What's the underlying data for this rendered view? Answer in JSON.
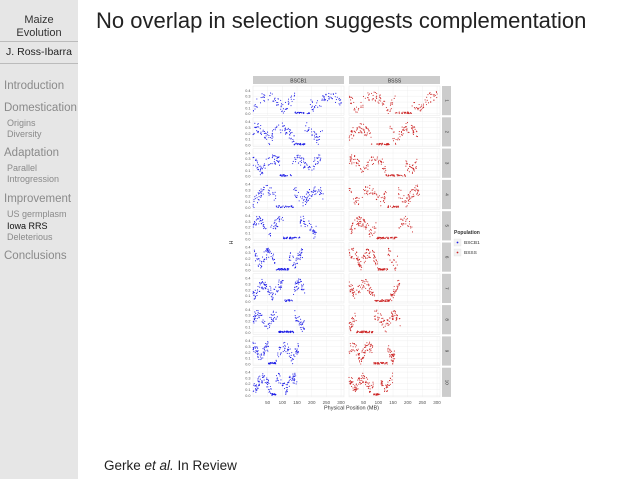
{
  "sidebar": {
    "title_line1": "Maize",
    "title_line2": "Evolution",
    "author": "J. Ross-Ibarra",
    "sections": [
      {
        "label": "Introduction",
        "subs": []
      },
      {
        "label": "Domestication",
        "subs": [
          "Origins",
          "Diversity"
        ]
      },
      {
        "label": "Adaptation",
        "subs": [
          "Parallel",
          "Introgression"
        ]
      },
      {
        "label": "Improvement",
        "subs": [
          "US germplasm",
          "Iowa RRS",
          "Deleterious"
        ]
      },
      {
        "label": "Conclusions",
        "subs": []
      }
    ],
    "active_item": "Iowa RRS"
  },
  "slide": {
    "title": "No overlap in selection suggests complementation",
    "caption_pre": "Gerke ",
    "caption_italic": "et al.",
    "caption_post": " In Review"
  },
  "chart_data": {
    "type": "scatter",
    "panels_columns": [
      "BSCB1",
      "BSSS"
    ],
    "panels_rows": [
      "1",
      "2",
      "3",
      "4",
      "5",
      "6",
      "7",
      "8",
      "9",
      "10"
    ],
    "ylabel": "H",
    "xlabel": "Physical Position (MB)",
    "y_ticks": [
      "0.4",
      "0.3",
      "0.2",
      "0.1",
      "0.0"
    ],
    "x_ticks": [
      "50",
      "100",
      "150",
      "200",
      "250",
      "300"
    ],
    "ylim": [
      0,
      0.45
    ],
    "xlim": [
      0,
      310
    ],
    "chromosome_lengths_mb": [
      301,
      237,
      232,
      241,
      217,
      169,
      176,
      175,
      157,
      150
    ],
    "series": [
      {
        "name": "BSCB1",
        "color": "#1a1ae6"
      },
      {
        "name": "BSSS",
        "color": "#cc2222"
      }
    ],
    "legend": {
      "title": "Population",
      "placement": "right",
      "entries": [
        "BSCB1",
        "BSSS"
      ]
    },
    "strip_color": "#cccccc",
    "panel_bg": "#ffffff",
    "grid_color": "#ececec"
  }
}
